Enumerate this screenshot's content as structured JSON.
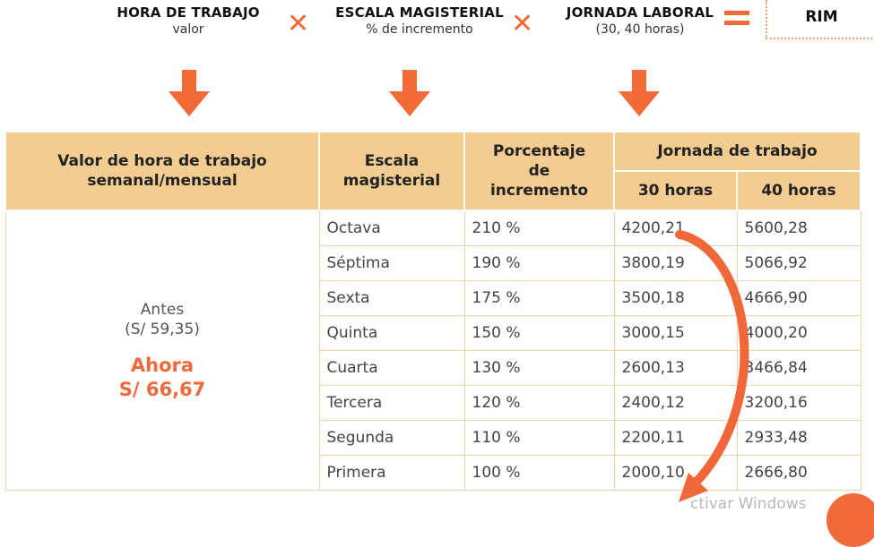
{
  "formula": {
    "term1": {
      "title": "HORA DE TRABAJO",
      "sub": "valor"
    },
    "term2": {
      "title": "ESCALA MAGISTERIAL",
      "sub": "% de incremento"
    },
    "term3": {
      "title": "JORNADA LABORAL",
      "sub": "(30, 40 horas)"
    },
    "result": "RIM"
  },
  "table": {
    "headers": {
      "valor_line1": "Valor de hora de trabajo",
      "valor_line2": "semanal/mensual",
      "escala_line1": "Escala",
      "escala_line2": "magisterial",
      "pct_line1": "Porcentaje",
      "pct_line2": "de",
      "pct_line3": "incremento",
      "jornada": "Jornada de trabajo",
      "h30": "30 horas",
      "h40": "40 horas"
    },
    "left": {
      "antes": "Antes",
      "antes_value": "(S/ 59,35)",
      "ahora": "Ahora",
      "ahora_value": "S/ 66,67"
    },
    "rows": [
      {
        "escala": "Octava",
        "pct": "210 %",
        "h30": "4200,21",
        "h40": "5600,28"
      },
      {
        "escala": "Séptima",
        "pct": "190 %",
        "h30": "3800,19",
        "h40": "5066,92"
      },
      {
        "escala": "Sexta",
        "pct": "175 %",
        "h30": "3500,18",
        "h40": "4666,90"
      },
      {
        "escala": "Quinta",
        "pct": "150 %",
        "h30": "3000,15",
        "h40": "4000,20"
      },
      {
        "escala": "Cuarta",
        "pct": "130 %",
        "h30": "2600,13",
        "h40": "3466,84"
      },
      {
        "escala": "Tercera",
        "pct": "120 %",
        "h30": "2400,12",
        "h40": "3200,16"
      },
      {
        "escala": "Segunda",
        "pct": "110 %",
        "h30": "2200,11",
        "h40": "2933,48"
      },
      {
        "escala": "Primera",
        "pct": "100 %",
        "h30": "2000,10",
        "h40": "2666,80"
      }
    ]
  },
  "watermark": "ctivar Windows",
  "colors": {
    "accent": "#f26a36",
    "header_bg": "#f2cc90",
    "ahora": "#ee6a3b"
  }
}
